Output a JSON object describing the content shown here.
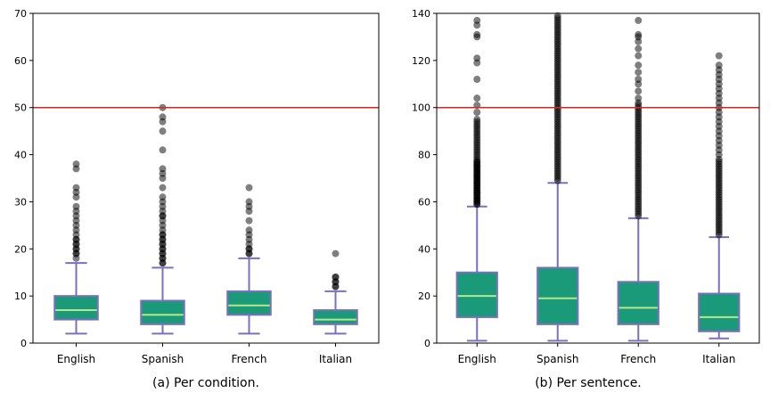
{
  "chart_data": [
    {
      "type": "box",
      "caption": "(a) Per condition.",
      "categories": [
        "English",
        "Spanish",
        "French",
        "Italian"
      ],
      "ylim": [
        0,
        70
      ],
      "yticks": [
        "0",
        "10",
        "20",
        "30",
        "40",
        "50",
        "60",
        "70"
      ],
      "reference_line": 50,
      "grid": false,
      "boxes": [
        {
          "category": "English",
          "whislo": 2,
          "q1": 5,
          "med": 7,
          "q3": 10,
          "whishi": 17,
          "fliers": [
            18,
            19,
            19,
            20,
            20,
            21,
            21,
            22,
            22,
            23,
            24,
            25,
            26,
            27,
            28,
            29,
            31,
            32,
            33,
            37,
            38
          ]
        },
        {
          "category": "Spanish",
          "whislo": 2,
          "q1": 4,
          "med": 6,
          "q3": 9,
          "whishi": 16,
          "fliers": [
            17,
            17,
            18,
            18,
            19,
            19,
            20,
            20,
            21,
            21,
            22,
            22,
            23,
            23,
            24,
            25,
            26,
            27,
            27,
            28,
            29,
            30,
            31,
            33,
            35,
            36,
            37,
            41,
            45,
            47,
            48,
            50
          ]
        },
        {
          "category": "French",
          "whislo": 2,
          "q1": 6,
          "med": 8,
          "q3": 11,
          "whishi": 18,
          "fliers": [
            19,
            19,
            20,
            20,
            21,
            22,
            23,
            24,
            26,
            28,
            29,
            30,
            33
          ]
        },
        {
          "category": "Italian",
          "whislo": 2,
          "q1": 4,
          "med": 5,
          "q3": 7,
          "whishi": 11,
          "fliers": [
            12,
            12,
            13,
            13,
            14,
            14,
            19
          ]
        }
      ]
    },
    {
      "type": "box",
      "caption": "(b) Per sentence.",
      "categories": [
        "English",
        "Spanish",
        "French",
        "Italian"
      ],
      "ylim": [
        0,
        140
      ],
      "yticks": [
        "0",
        "20",
        "40",
        "60",
        "80",
        "100",
        "120",
        "140"
      ],
      "reference_line": 100,
      "grid": false,
      "boxes": [
        {
          "category": "English",
          "whislo": 1,
          "q1": 11,
          "med": 20,
          "q3": 30,
          "whishi": 58,
          "fliers": [
            59,
            59,
            60,
            60,
            61,
            61,
            62,
            62,
            63,
            63,
            64,
            64,
            65,
            65,
            66,
            66,
            67,
            67,
            68,
            68,
            69,
            69,
            70,
            70,
            71,
            71,
            72,
            72,
            73,
            73,
            74,
            74,
            75,
            75,
            76,
            76,
            77,
            77,
            78,
            79,
            80,
            81,
            82,
            83,
            84,
            85,
            86,
            87,
            88,
            89,
            90,
            91,
            92,
            93,
            94,
            95,
            98,
            101,
            104,
            112,
            119,
            121,
            130,
            131,
            135,
            137
          ]
        },
        {
          "category": "Spanish",
          "whislo": 1,
          "q1": 8,
          "med": 19,
          "q3": 32,
          "whishi": 68,
          "fliers": [
            69,
            70,
            71,
            72,
            73,
            74,
            75,
            76,
            77,
            78,
            79,
            80,
            81,
            82,
            83,
            84,
            85,
            86,
            87,
            88,
            89,
            90,
            91,
            92,
            93,
            94,
            95,
            96,
            97,
            98,
            99,
            100,
            101,
            102,
            103,
            104,
            105,
            106,
            107,
            108,
            109,
            110,
            111,
            112,
            113,
            114,
            115,
            116,
            117,
            118,
            119,
            120,
            121,
            122,
            123,
            124,
            125,
            126,
            127,
            128,
            129,
            130,
            131,
            132,
            133,
            134,
            135,
            136,
            137,
            138,
            139
          ]
        },
        {
          "category": "French",
          "whislo": 1,
          "q1": 8,
          "med": 15,
          "q3": 26,
          "whishi": 53,
          "fliers": [
            54,
            55,
            56,
            57,
            58,
            59,
            60,
            61,
            62,
            63,
            64,
            65,
            66,
            67,
            68,
            69,
            70,
            71,
            72,
            73,
            74,
            75,
            76,
            77,
            78,
            79,
            80,
            81,
            82,
            83,
            84,
            85,
            86,
            87,
            88,
            89,
            90,
            91,
            92,
            93,
            94,
            95,
            96,
            97,
            98,
            99,
            100,
            101,
            102,
            104,
            107,
            110,
            112,
            115,
            118,
            122,
            125,
            128,
            130,
            131,
            137
          ]
        },
        {
          "category": "Italian",
          "whislo": 2,
          "q1": 5,
          "med": 11,
          "q3": 21,
          "whishi": 45,
          "fliers": [
            46,
            47,
            48,
            49,
            50,
            51,
            52,
            53,
            54,
            55,
            56,
            57,
            58,
            59,
            60,
            61,
            62,
            63,
            64,
            65,
            66,
            67,
            68,
            69,
            70,
            71,
            72,
            73,
            74,
            75,
            76,
            77,
            78,
            80,
            82,
            84,
            86,
            88,
            90,
            92,
            94,
            96,
            98,
            100,
            102,
            104,
            106,
            108,
            110,
            112,
            114,
            116,
            118,
            122
          ]
        }
      ]
    }
  ],
  "colors": {
    "box_fill": "#1a9a78",
    "box_edge": "#7b6fc0",
    "whisker": "#7b6fc0",
    "median": "#b8e68a",
    "flier": "#000000",
    "reference_line": "#d9231c",
    "axis": "#000000",
    "text": "#000000"
  }
}
